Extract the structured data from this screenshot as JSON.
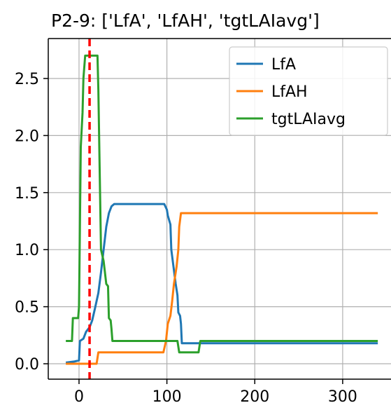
{
  "chart_data": {
    "type": "line",
    "title": "P2-9: ['LfA', 'LfAH', 'tgtLAIavg']",
    "xlabel": "",
    "ylabel": "",
    "xlim": [
      -35,
      355
    ],
    "ylim": [
      -0.135,
      2.85
    ],
    "xticks": [
      0,
      100,
      200,
      300
    ],
    "yticks": [
      0.0,
      0.5,
      1.0,
      1.5,
      2.0,
      2.5
    ],
    "xtick_labels": [
      "0",
      "100",
      "200",
      "300"
    ],
    "ytick_labels": [
      "0.0",
      "0.5",
      "1.0",
      "1.5",
      "2.0",
      "2.5"
    ],
    "grid": true,
    "legend_position": "top-right",
    "vline": {
      "x": 12,
      "color": "#ff0000",
      "style": "dashed"
    },
    "series": [
      {
        "name": "LfA",
        "color": "#1f77b4",
        "points": [
          [
            -15,
            0.01
          ],
          [
            -5,
            0.02
          ],
          [
            0,
            0.03
          ],
          [
            1,
            0.2
          ],
          [
            5,
            0.22
          ],
          [
            8,
            0.28
          ],
          [
            12,
            0.32
          ],
          [
            15,
            0.38
          ],
          [
            18,
            0.48
          ],
          [
            22,
            0.62
          ],
          [
            25,
            0.8
          ],
          [
            28,
            1.0
          ],
          [
            31,
            1.2
          ],
          [
            34,
            1.32
          ],
          [
            37,
            1.38
          ],
          [
            40,
            1.4
          ],
          [
            97,
            1.4
          ],
          [
            100,
            1.35
          ],
          [
            101,
            1.3
          ],
          [
            104,
            1.22
          ],
          [
            105,
            1.0
          ],
          [
            108,
            0.82
          ],
          [
            110,
            0.7
          ],
          [
            112,
            0.6
          ],
          [
            113,
            0.45
          ],
          [
            115,
            0.42
          ],
          [
            116,
            0.35
          ],
          [
            117,
            0.18
          ],
          [
            340,
            0.18
          ]
        ]
      },
      {
        "name": "LfAH",
        "color": "#ff7f0e",
        "points": [
          [
            -15,
            0.0
          ],
          [
            20,
            0.0
          ],
          [
            22,
            0.1
          ],
          [
            96,
            0.1
          ],
          [
            99,
            0.2
          ],
          [
            101,
            0.35
          ],
          [
            104,
            0.42
          ],
          [
            106,
            0.55
          ],
          [
            108,
            0.7
          ],
          [
            111,
            0.85
          ],
          [
            113,
            1.0
          ],
          [
            114,
            1.2
          ],
          [
            116,
            1.32
          ],
          [
            340,
            1.32
          ]
        ]
      },
      {
        "name": "tgtLAIavg",
        "color": "#2ca02c",
        "points": [
          [
            -15,
            0.2
          ],
          [
            -8,
            0.2
          ],
          [
            -7,
            0.4
          ],
          [
            -1,
            0.4
          ],
          [
            0,
            0.5
          ],
          [
            2,
            1.9
          ],
          [
            4,
            2.2
          ],
          [
            5,
            2.5
          ],
          [
            7,
            2.7
          ],
          [
            21,
            2.7
          ],
          [
            22,
            2.4
          ],
          [
            25,
            1.0
          ],
          [
            28,
            0.9
          ],
          [
            31,
            0.7
          ],
          [
            33,
            0.68
          ],
          [
            34,
            0.4
          ],
          [
            36,
            0.38
          ],
          [
            37,
            0.3
          ],
          [
            38,
            0.2
          ],
          [
            112,
            0.2
          ],
          [
            114,
            0.1
          ],
          [
            136,
            0.1
          ],
          [
            138,
            0.2
          ],
          [
            340,
            0.2
          ]
        ]
      }
    ]
  }
}
